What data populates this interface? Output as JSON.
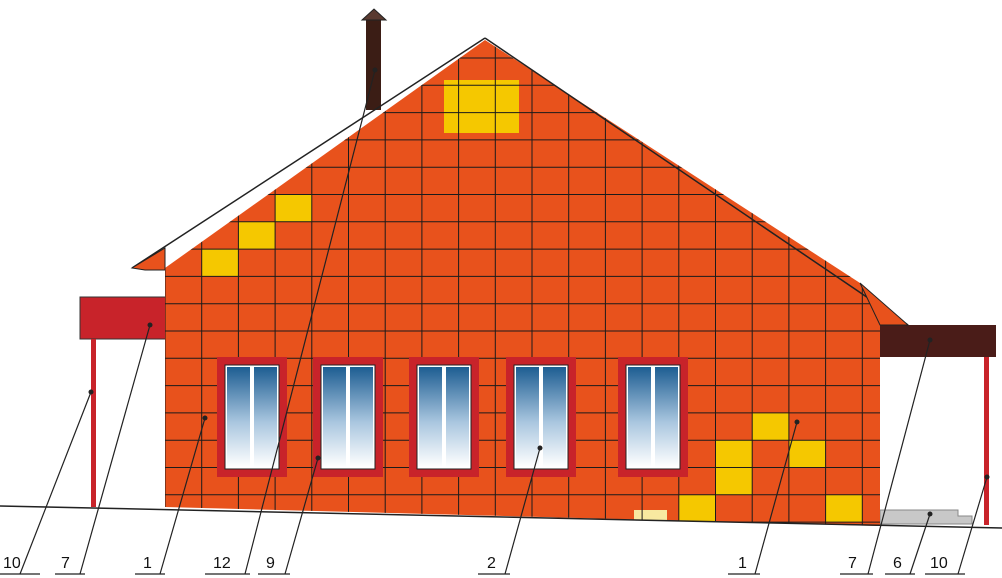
{
  "colors": {
    "wall": "#e8521c",
    "wall_accent": "#f5c800",
    "grid_line": "#1b1b1b",
    "left_canopy": "#c8232a",
    "right_canopy": "#4a1c18",
    "chimney": "#3b1d15",
    "window_frame": "#c8232a",
    "post": "#c8232a",
    "ground_line": "#222222",
    "foundation_block": "#c8c8c8"
  },
  "callouts": [
    {
      "id": "left-10",
      "text": "10"
    },
    {
      "id": "left-7",
      "text": "7"
    },
    {
      "id": "left-1",
      "text": "1"
    },
    {
      "id": "left-12",
      "text": "12"
    },
    {
      "id": "left-9",
      "text": "9"
    },
    {
      "id": "center-2",
      "text": "2"
    },
    {
      "id": "right-1",
      "text": "1"
    },
    {
      "id": "right-7",
      "text": "7"
    },
    {
      "id": "right-6",
      "text": "6"
    },
    {
      "id": "right-10",
      "text": "10"
    }
  ],
  "windows_count": 5
}
